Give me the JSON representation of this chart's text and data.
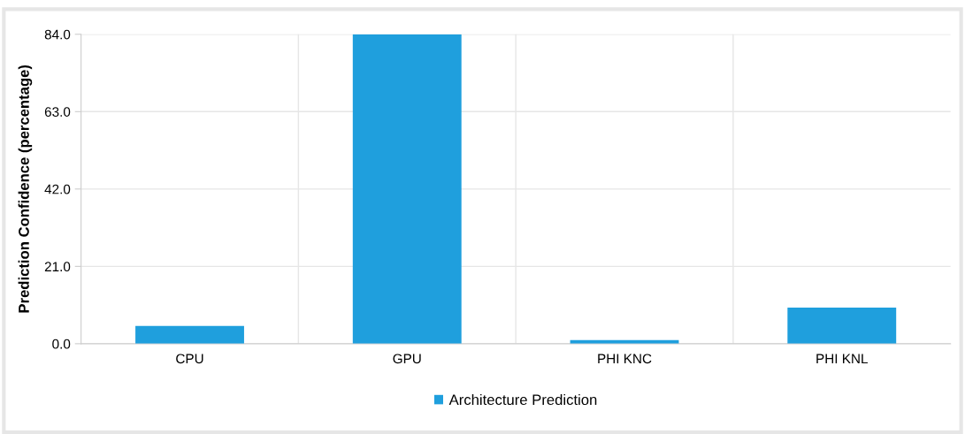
{
  "chart_data": {
    "type": "bar",
    "ylabel": "Prediction Confidence (percentage)",
    "categories": [
      "CPU",
      "GPU",
      "PHI KNC",
      "PHI KNL"
    ],
    "series": [
      {
        "name": "Architecture Prediction",
        "color": "#1f9fdd",
        "values": [
          4.8,
          84,
          1,
          9.8
        ]
      }
    ],
    "ylim": [
      0,
      84
    ],
    "yticks": [
      {
        "value": 0,
        "label": "0.0"
      },
      {
        "value": 21,
        "label": "21.0"
      },
      {
        "value": 42,
        "label": "42.0"
      },
      {
        "value": 63,
        "label": "63.0"
      },
      {
        "value": 84,
        "label": "84.0"
      }
    ],
    "grid": true,
    "legend": "bottom"
  }
}
